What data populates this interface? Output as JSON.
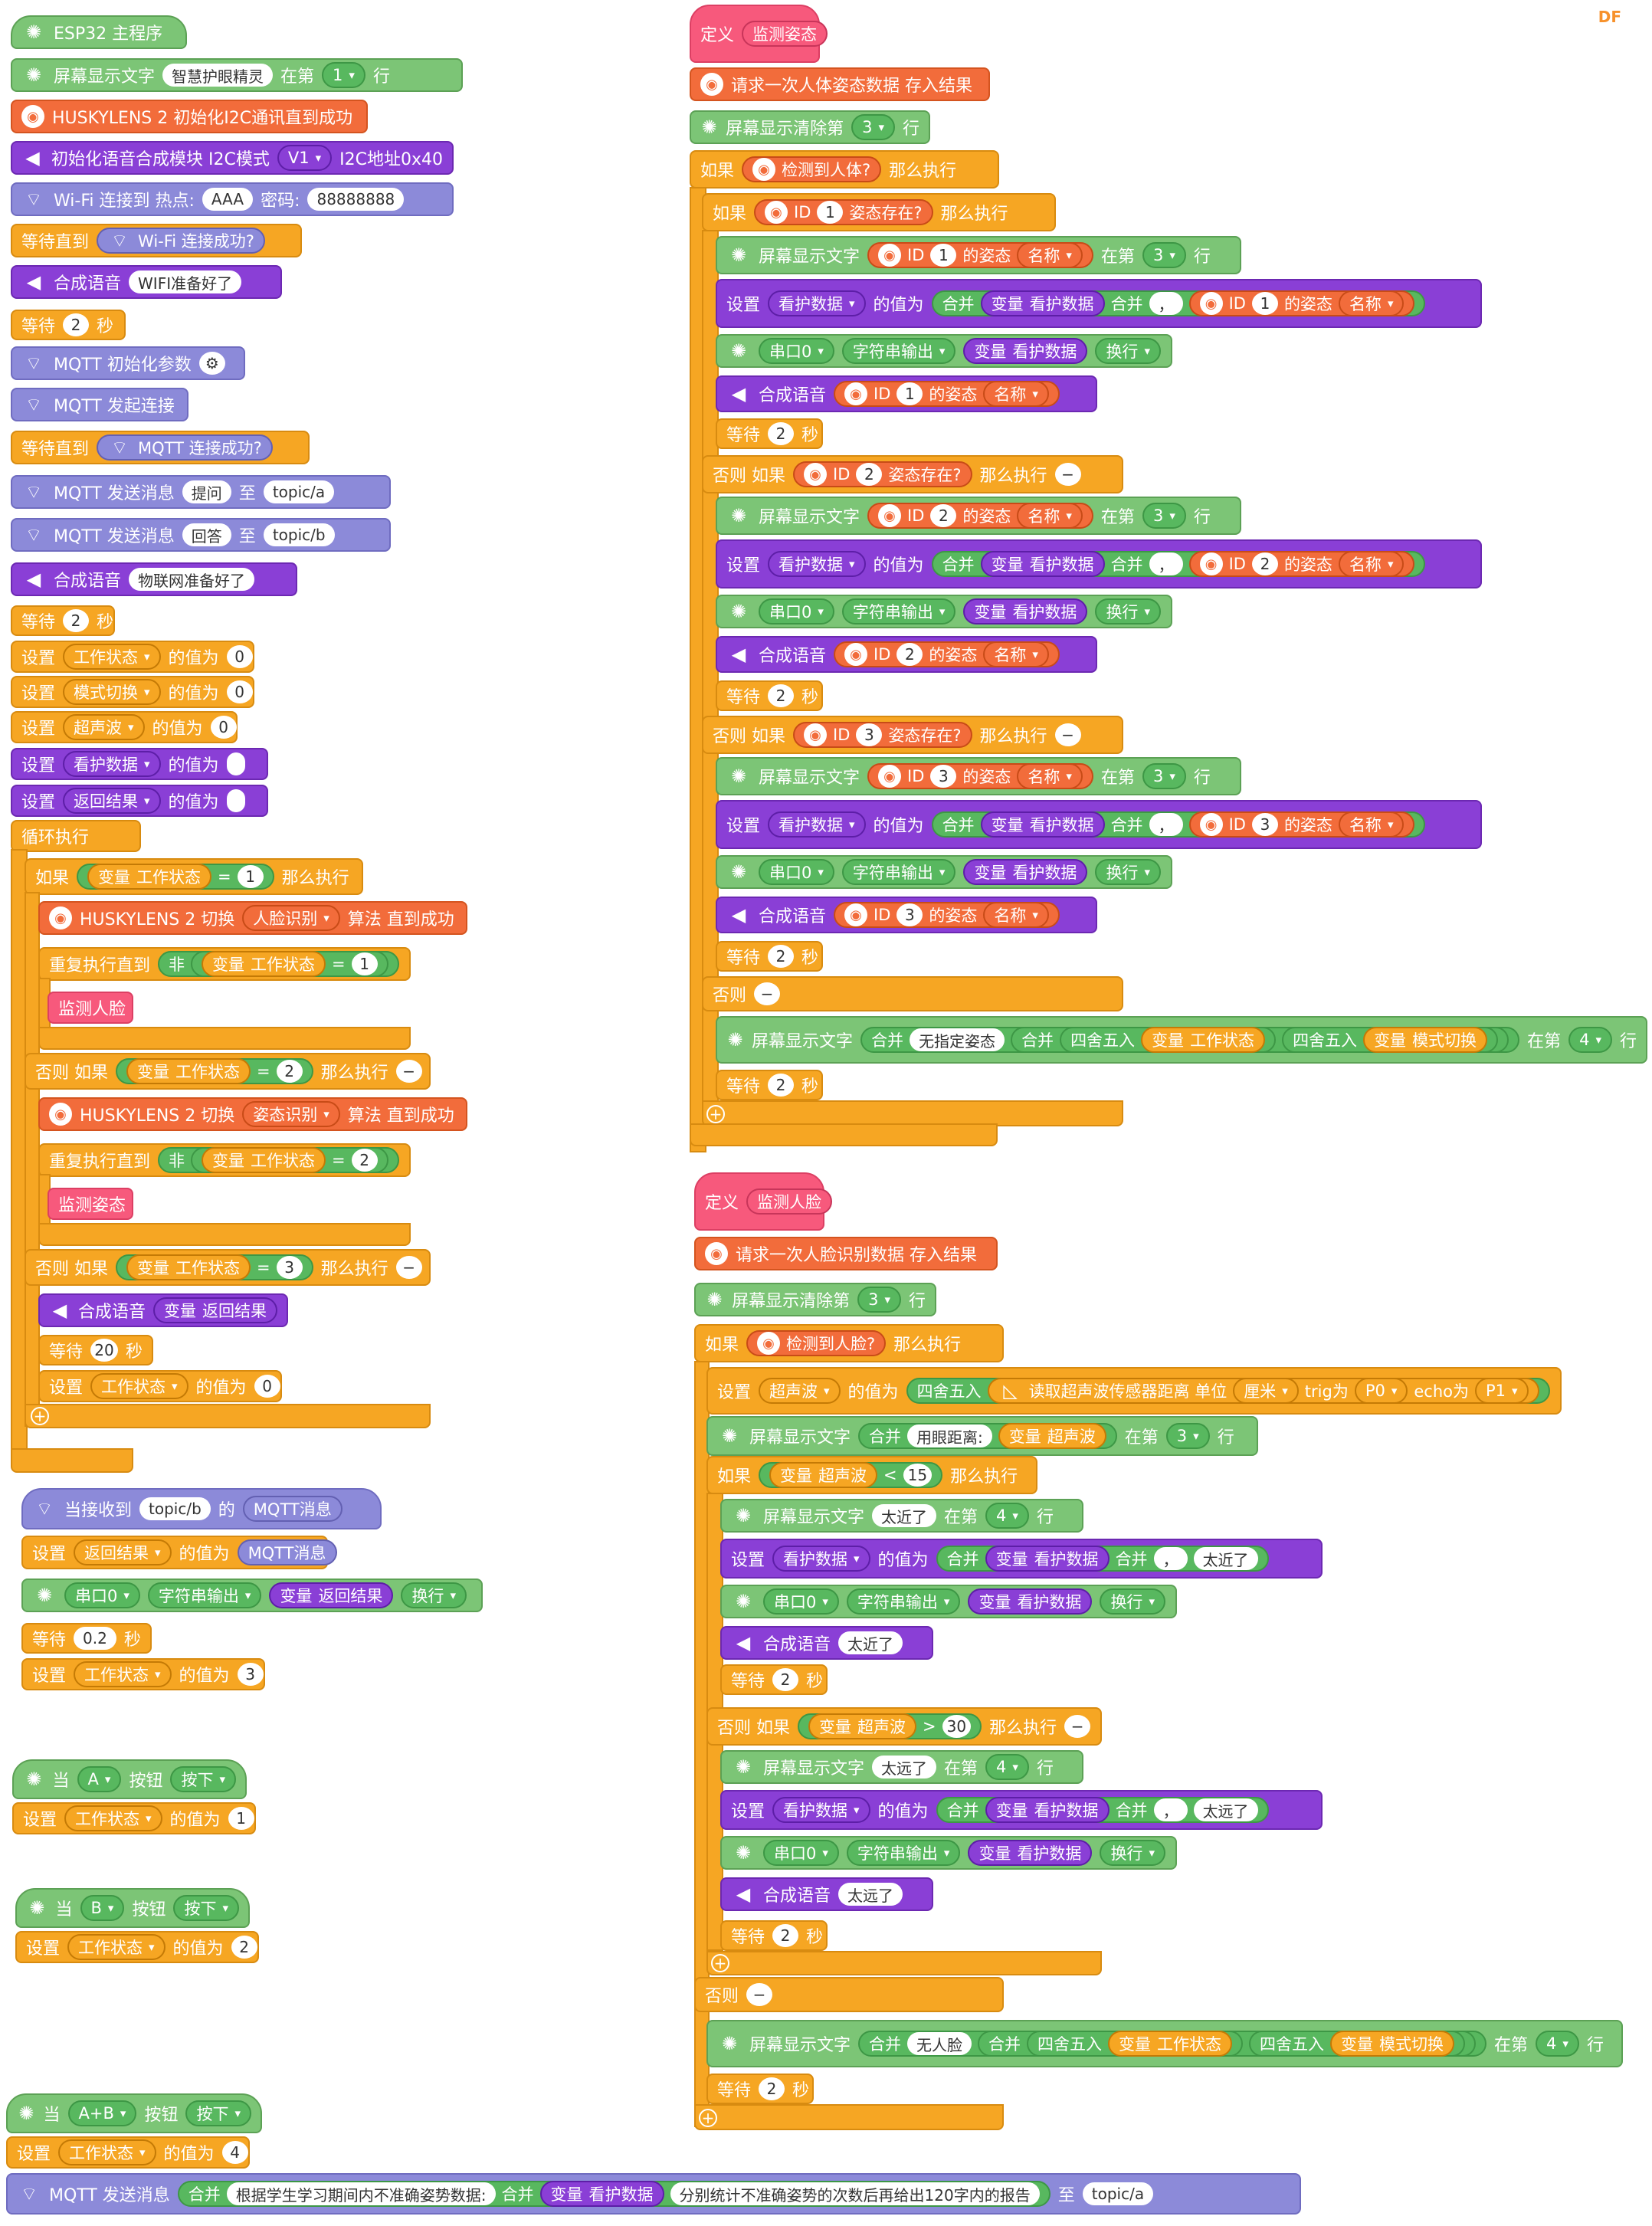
{
  "brand": "DF",
  "main": {
    "hat": "ESP32 主程序",
    "screen_text": "屏幕显示文字",
    "screen_text_value": "        智慧护眼精灵",
    "at_line": "在第",
    "line_1": "1",
    "row": "行",
    "husky_init": "HUSKYLENS 2 初始化I2C通讯直到成功",
    "tts_init": "初始化语音合成模块 I2C模式",
    "tts_ver": "V1",
    "tts_addr": "I2C地址0x40",
    "wifi_connect": "Wi-Fi 连接到 热点:",
    "wifi_ssid": "AAA",
    "wifi_pwd_label": "密码:",
    "wifi_pwd": "88888888",
    "wait_until": "等待直到",
    "wifi_ok": "Wi-Fi 连接成功?",
    "tts_say": "合成语音",
    "wifi_ready": "WIFI准备好了",
    "wait": "等待",
    "sec": "秒",
    "two": "2",
    "mqtt_init": "MQTT 初始化参数",
    "mqtt_connect": "MQTT 发起连接",
    "mqtt_ok": "MQTT 连接成功?",
    "mqtt_send": "MQTT 发送消息",
    "msg_q": "提问",
    "to": "至",
    "topic_a": "topic/a",
    "msg_a": "回答",
    "topic_b": "topic/b",
    "iot_ready": "物联网准备好了",
    "set": "设置",
    "value_of": "的值为",
    "var_work": "工作状态",
    "var_mode": "模式切换",
    "var_ultra": "超声波",
    "var_care": "看护数据",
    "var_ret": "返回结果",
    "zero": "0",
    "blank": "  ",
    "loop": "循环执行",
    "if": "如果",
    "then": "那么执行",
    "else_if": "否则 如果",
    "else": "否则",
    "variable": "变量",
    "eq": "=",
    "one": "1",
    "three": "3",
    "husky_switch": "HUSKYLENS 2 切换",
    "algo_face": "人脸识别",
    "algo_pose": "姿态识别",
    "algo_until": "算法 直到成功",
    "repeat_until": "重复执行直到",
    "not": "非",
    "call_face": "监测人脸",
    "call_pose": "监测姿态",
    "wait_20": "20"
  },
  "mqtt_recv": {
    "when_recv": "当接收到",
    "topic": "topic/b",
    "of": "的",
    "mqtt_msg": "MQTT消息",
    "serial": "串口0",
    "str_out": "字符串输出",
    "newline": "换行",
    "wait_val": "0.2",
    "set_val": "3"
  },
  "btn_a": {
    "when": "当",
    "key": "A",
    "button": "按钮",
    "press": "按下",
    "val": "1"
  },
  "btn_b": {
    "when": "当",
    "key": "B",
    "button": "按钮",
    "press": "按下",
    "val": "2"
  },
  "btn_ab": {
    "when": "当",
    "key": "A+B",
    "button": "按钮",
    "press": "按下",
    "val": "4",
    "concat": "合并",
    "prompt": "根据学生学习期间内不准确姿势数据:",
    "suffix": "分别统计不准确姿势的次数后再给出120字内的报告"
  },
  "pose": {
    "define": "定义",
    "name": "监测姿态",
    "request": "请求一次人体姿态数据 存入结果",
    "clear": "屏幕显示清除第",
    "clear_line": "3",
    "detected": "检测到人体?",
    "id": "ID",
    "exists": "姿态存在?",
    "of_pose": "的姿态",
    "pose_name": "名称",
    "comma": "，",
    "no_pose": "无指定姿态",
    "round": "四舍五入",
    "line_4": "4"
  },
  "face": {
    "name": "监测人脸",
    "request": "请求一次人脸识别数据 存入结果",
    "detected": "检测到人脸?",
    "read_ultra": "读取超声波传感器距离 单位",
    "unit": "厘米",
    "trig": "trig为",
    "p0": "P0",
    "echo": "echo为",
    "p1": "P1",
    "eye_dist": "用眼距离:",
    "lt": "<",
    "gt": ">",
    "near_val": "15",
    "far_val": "30",
    "too_near": "太近了",
    "too_far": "太远了",
    "no_face": "无人脸"
  }
}
